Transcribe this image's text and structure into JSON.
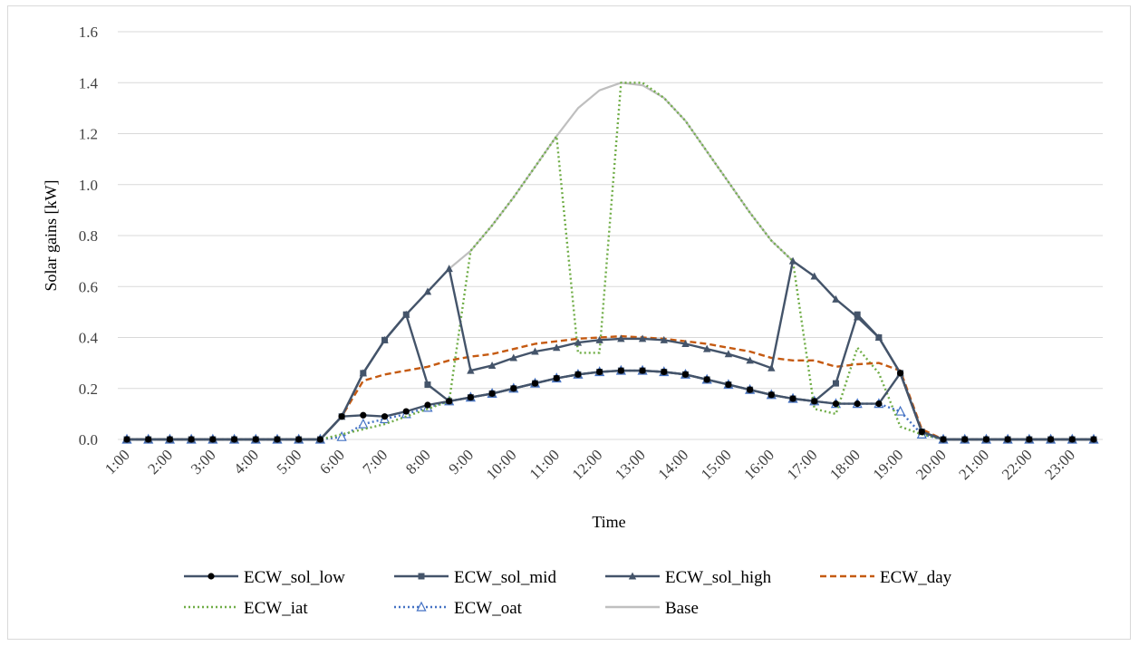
{
  "chart_data": {
    "type": "line",
    "title": "",
    "xlabel": "Time",
    "ylabel": "Solar gains [kW]",
    "ylim": [
      0,
      1.6
    ],
    "yticks": [
      "0.0",
      "0.2",
      "0.4",
      "0.6",
      "0.8",
      "1.0",
      "1.2",
      "1.4",
      "1.6"
    ],
    "grid": "horizontal",
    "legend_position": "bottom",
    "x": [
      1,
      1.5,
      2,
      2.5,
      3,
      3.5,
      4,
      4.5,
      5,
      5.5,
      6,
      6.5,
      7,
      7.5,
      8,
      8.5,
      9,
      9.5,
      10,
      10.5,
      11,
      11.5,
      12,
      12.5,
      13,
      13.5,
      14,
      14.5,
      15,
      15.5,
      16,
      16.5,
      17,
      17.5,
      18,
      18.5,
      19,
      19.5,
      20,
      20.5,
      21,
      21.5,
      22,
      22.5,
      23,
      23.5
    ],
    "x_tick_labels": [
      "1:00",
      "2:00",
      "3:00",
      "4:00",
      "5:00",
      "6:00",
      "7:00",
      "8:00",
      "9:00",
      "10:00",
      "11:00",
      "12:00",
      "13:00",
      "14:00",
      "15:00",
      "16:00",
      "17:00",
      "18:00",
      "19:00",
      "20:00",
      "21:00",
      "22:00",
      "23:00"
    ],
    "series": [
      {
        "name": "ECW_sol_low",
        "color": "#44546a",
        "dash": "solid",
        "marker": "circle",
        "values": [
          0,
          0,
          0,
          0,
          0,
          0,
          0,
          0,
          0,
          0,
          0.09,
          0.095,
          0.09,
          0.11,
          0.135,
          0.15,
          0.165,
          0.18,
          0.2,
          0.22,
          0.24,
          0.255,
          0.265,
          0.27,
          0.27,
          0.265,
          0.255,
          0.235,
          0.215,
          0.195,
          0.175,
          0.16,
          0.15,
          0.14,
          0.14,
          0.14,
          0.26,
          0.03,
          0,
          0,
          0,
          0,
          0,
          0,
          0,
          0
        ]
      },
      {
        "name": "ECW_sol_mid",
        "color": "#44546a",
        "dash": "solid",
        "marker": "square",
        "values": [
          0,
          0,
          0,
          0,
          0,
          0,
          0,
          0,
          0,
          0,
          0.09,
          0.26,
          0.39,
          0.49,
          0.215,
          0.15,
          0.165,
          0.18,
          0.2,
          0.22,
          0.24,
          0.255,
          0.265,
          0.27,
          0.27,
          0.265,
          0.255,
          0.235,
          0.215,
          0.195,
          0.175,
          0.16,
          0.15,
          0.22,
          0.49,
          0.4,
          0.26,
          0.03,
          0,
          0,
          0,
          0,
          0,
          0,
          0,
          0
        ]
      },
      {
        "name": "ECW_sol_high",
        "color": "#44546a",
        "dash": "solid",
        "marker": "triangle",
        "values": [
          0,
          0,
          0,
          0,
          0,
          0,
          0,
          0,
          0,
          0,
          0.09,
          0.26,
          0.39,
          0.49,
          0.58,
          0.67,
          0.27,
          0.29,
          0.32,
          0.345,
          0.36,
          0.38,
          0.39,
          0.395,
          0.395,
          0.39,
          0.375,
          0.355,
          0.335,
          0.31,
          0.28,
          0.7,
          0.64,
          0.55,
          0.48,
          0.4,
          0.26,
          0.03,
          0,
          0,
          0,
          0,
          0,
          0,
          0,
          0
        ]
      },
      {
        "name": "ECW_day",
        "color": "#c55a11",
        "dash": "dashed",
        "marker": "none",
        "values": [
          0,
          0,
          0,
          0,
          0,
          0,
          0,
          0,
          0,
          0,
          0.09,
          0.23,
          0.255,
          0.27,
          0.285,
          0.31,
          0.325,
          0.335,
          0.355,
          0.375,
          0.385,
          0.395,
          0.4,
          0.405,
          0.4,
          0.395,
          0.385,
          0.375,
          0.36,
          0.345,
          0.32,
          0.31,
          0.31,
          0.285,
          0.295,
          0.3,
          0.27,
          0.04,
          0,
          0,
          0,
          0,
          0,
          0,
          0,
          0
        ]
      },
      {
        "name": "ECW_iat",
        "color": "#70ad47",
        "dash": "dotted",
        "marker": "none",
        "values": [
          0,
          0,
          0,
          0,
          0,
          0,
          0,
          0,
          0,
          0,
          0.02,
          0.04,
          0.06,
          0.09,
          0.12,
          0.15,
          0.74,
          0.84,
          0.95,
          1.07,
          1.19,
          0.34,
          0.34,
          1.4,
          1.4,
          1.34,
          1.25,
          1.13,
          1.01,
          0.89,
          0.78,
          0.7,
          0.12,
          0.1,
          0.36,
          0.26,
          0.05,
          0.02,
          0,
          0,
          0,
          0,
          0,
          0,
          0,
          0
        ]
      },
      {
        "name": "ECW_oat",
        "color": "#4472c4",
        "dash": "dotted",
        "marker": "triangle-open",
        "values": [
          0,
          0,
          0,
          0,
          0,
          0,
          0,
          0,
          0,
          0,
          0.01,
          0.06,
          0.08,
          0.1,
          0.125,
          0.15,
          0.165,
          0.18,
          0.2,
          0.22,
          0.24,
          0.255,
          0.265,
          0.27,
          0.27,
          0.265,
          0.255,
          0.235,
          0.215,
          0.195,
          0.175,
          0.16,
          0.15,
          0.14,
          0.14,
          0.14,
          0.11,
          0.02,
          0,
          0,
          0,
          0,
          0,
          0,
          0,
          0
        ]
      },
      {
        "name": "Base",
        "color": "#bfbfbf",
        "dash": "solid",
        "marker": "none",
        "values": [
          0,
          0,
          0,
          0,
          0,
          0,
          0,
          0,
          0,
          0,
          0.09,
          0.26,
          0.39,
          0.49,
          0.58,
          0.67,
          0.74,
          0.84,
          0.95,
          1.07,
          1.19,
          1.3,
          1.37,
          1.4,
          1.39,
          1.34,
          1.25,
          1.13,
          1.01,
          0.89,
          0.78,
          0.7,
          0.64,
          0.55,
          0.48,
          0.4,
          0.26,
          0.03,
          0,
          0,
          0,
          0,
          0,
          0,
          0,
          0
        ]
      }
    ]
  }
}
